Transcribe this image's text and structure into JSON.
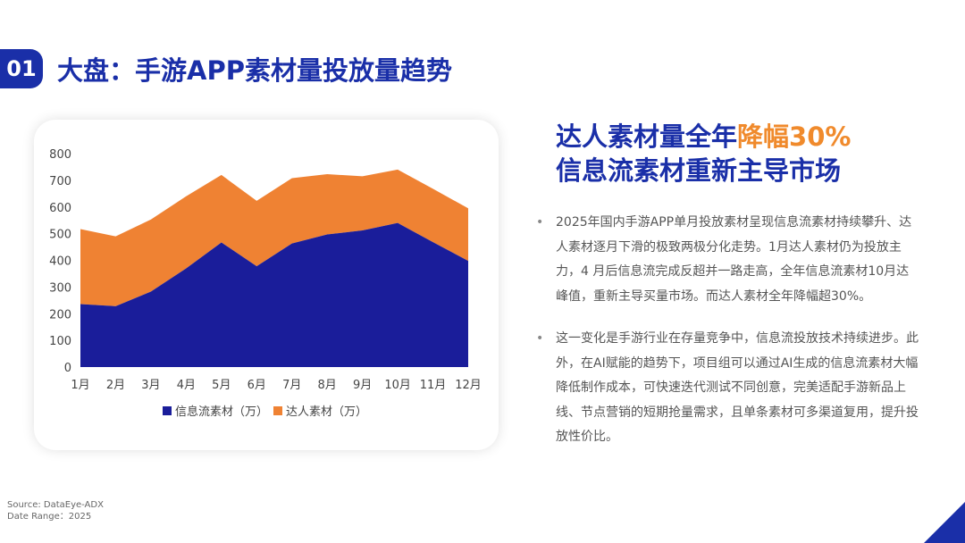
{
  "header": {
    "section_number": "01",
    "title": "大盘：手游APP素材量投放量趋势"
  },
  "headline": {
    "line1_prefix": "达人素材量全年",
    "line1_accent": "降幅30%",
    "line2": "信息流素材重新主导市场"
  },
  "bullets": [
    "2025年国内手游APP单月投放素材呈现信息流素材持续攀升、达人素材逐月下滑的极致两极分化走势。1月达人素材仍为投放主力，4 月后信息流完成反超并一路走高，全年信息流素材10月达峰值，重新主导买量市场。而达人素材全年降幅超30%。",
    "这一变化是手游行业在存量竞争中，信息流投放技术持续进步。此外，在AI赋能的趋势下，项目组可以通过AI生成的信息流素材大幅降低制作成本，可快速迭代测试不同创意，完美适配手游新品上线、节点营销的短期抢量需求，且单条素材可多渠道复用，提升投放性价比。"
  ],
  "source": {
    "line1": "Source: DataEye-ADX",
    "line2": "Date Range：2025"
  },
  "colors": {
    "brand_blue": "#1a2fa8",
    "accent_orange": "#f08a2c",
    "series_feed": "#1a1d9a",
    "series_kol": "#ef8233"
  },
  "chart_data": {
    "type": "area",
    "stacked": true,
    "categories": [
      "1月",
      "2月",
      "3月",
      "4月",
      "5月",
      "6月",
      "7月",
      "8月",
      "9月",
      "10月",
      "11月",
      "12月"
    ],
    "series": [
      {
        "name": "信息流素材（万）",
        "values": [
          236,
          228,
          283,
          370,
          467,
          378,
          463,
          497,
          512,
          540,
          468,
          398
        ]
      },
      {
        "name": "达人素材（万）",
        "values": [
          281,
          262,
          270,
          270,
          253,
          245,
          245,
          226,
          203,
          200,
          200,
          197
        ]
      }
    ],
    "y_ticks": [
      "0",
      "100",
      "200",
      "300",
      "400",
      "500",
      "600",
      "700",
      "800"
    ],
    "ylim": [
      0,
      800
    ],
    "grid": false,
    "legend_position": "bottom"
  }
}
